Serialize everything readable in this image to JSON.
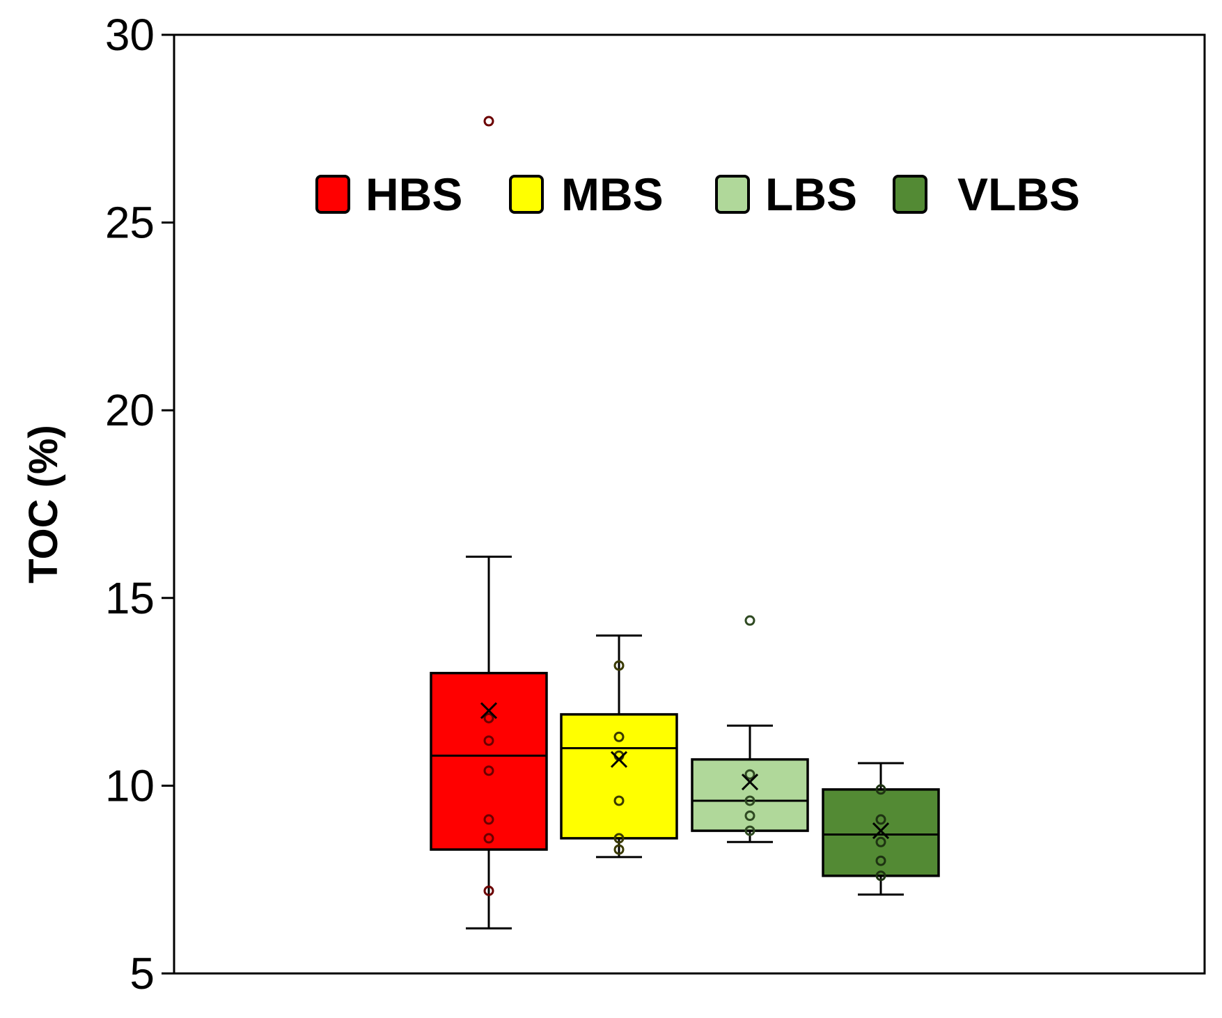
{
  "chart_data": {
    "type": "box",
    "title": "",
    "xlabel": "",
    "ylabel": "TOC (%)",
    "ylim": [
      5,
      30
    ],
    "yticks": [
      "5",
      "10",
      "15",
      "20",
      "25",
      "30"
    ],
    "grid": false,
    "legend": {
      "placement": "top-center",
      "entries": [
        "HBS",
        "MBS",
        "LBS",
        "VLBS"
      ]
    },
    "series": [
      {
        "name": "HBS",
        "color": "#ff0000",
        "whisker_low": 6.2,
        "q1": 8.3,
        "median": 10.8,
        "q3": 13.0,
        "whisker_high": 16.1,
        "mean": 12.0,
        "points": [
          27.7,
          11.8,
          11.2,
          10.4,
          9.1,
          8.6,
          7.2
        ]
      },
      {
        "name": "MBS",
        "color": "#ffff00",
        "whisker_low": 8.1,
        "q1": 8.6,
        "median": 11.0,
        "q3": 11.9,
        "whisker_high": 14.0,
        "mean": 10.7,
        "points": [
          13.2,
          11.3,
          10.8,
          9.6,
          8.6,
          8.3
        ]
      },
      {
        "name": "LBS",
        "color": "#b0d89a",
        "whisker_low": 8.5,
        "q1": 8.8,
        "median": 9.6,
        "q3": 10.7,
        "whisker_high": 11.6,
        "mean": 10.1,
        "points": [
          14.4,
          10.3,
          9.6,
          9.2,
          8.8
        ]
      },
      {
        "name": "VLBS",
        "color": "#538a34",
        "whisker_low": 7.1,
        "q1": 7.6,
        "median": 8.7,
        "q3": 9.9,
        "whisker_high": 10.6,
        "mean": 8.8,
        "points": [
          9.9,
          9.1,
          8.5,
          8.0,
          7.6
        ]
      }
    ]
  }
}
